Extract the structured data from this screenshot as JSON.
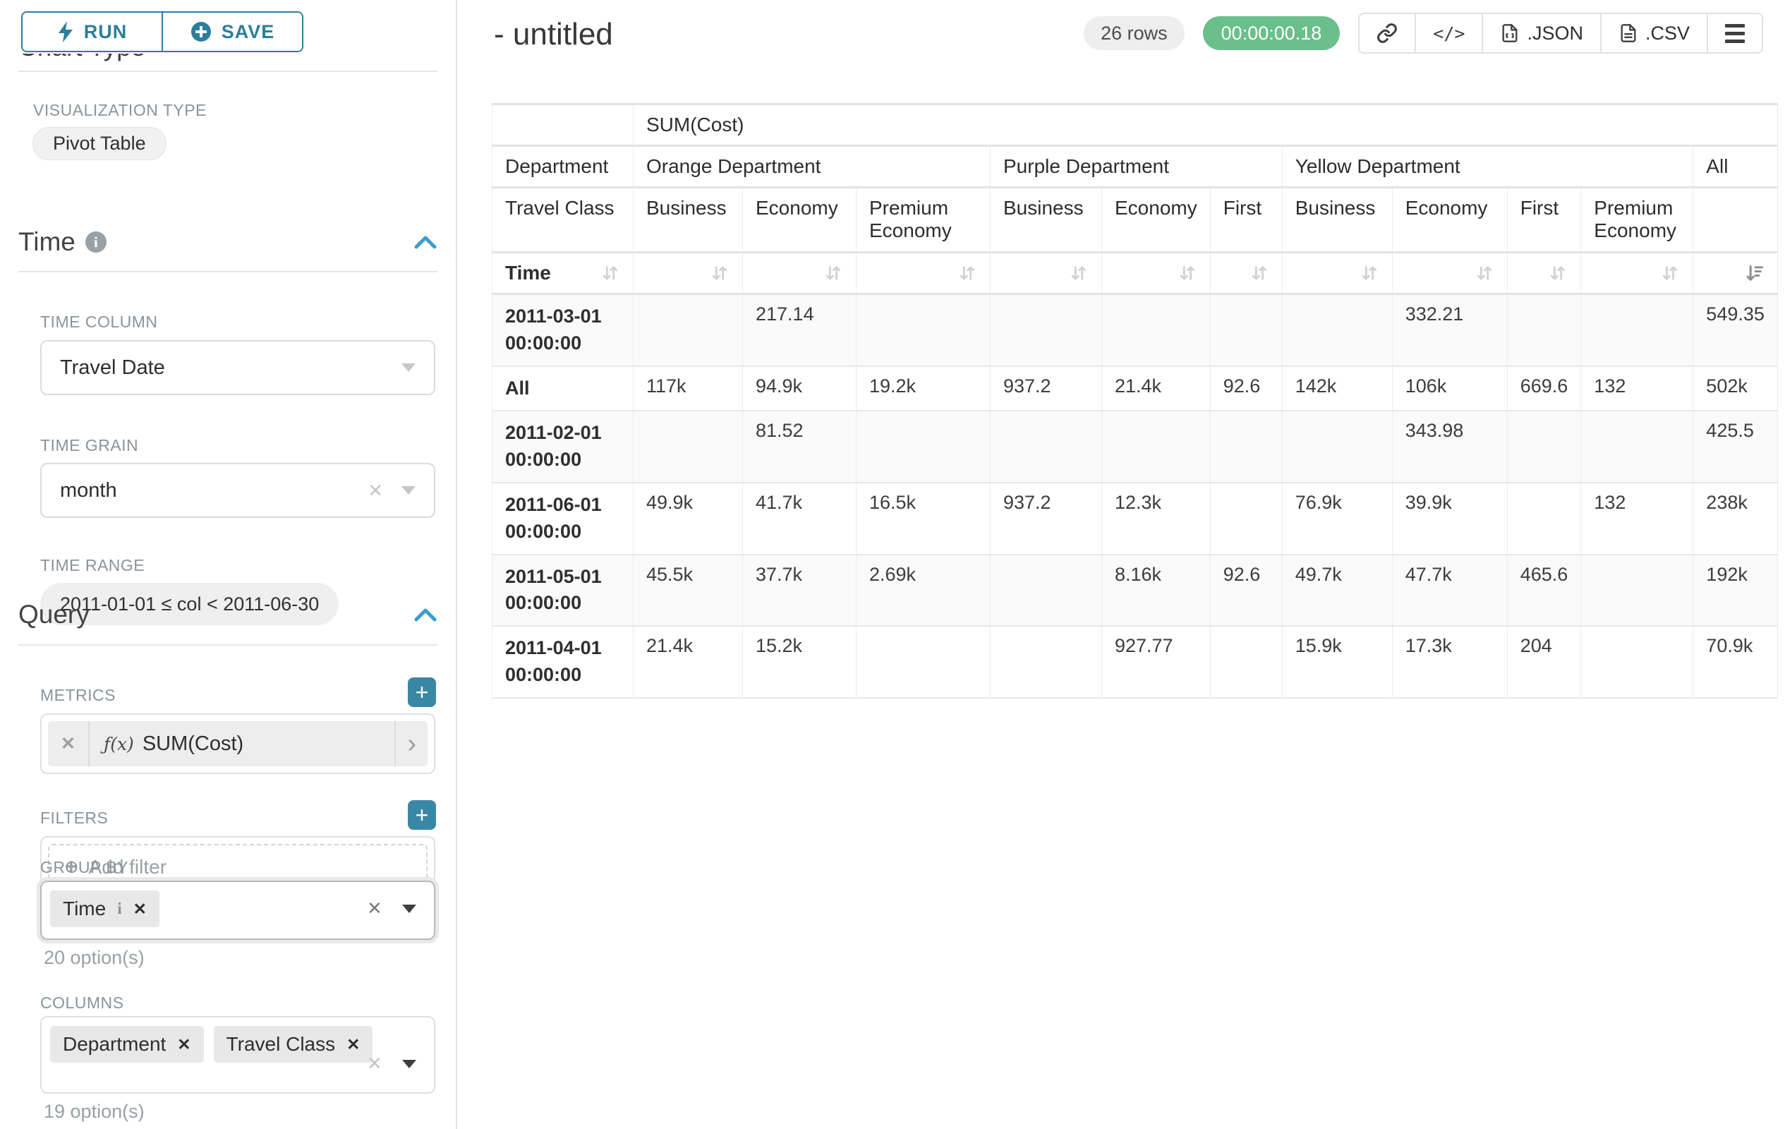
{
  "colors": {
    "accent_teal": "#2b7e9c",
    "chevron_blue": "#3a9ec7",
    "plus_button_teal": "#3a87a5",
    "timer_green": "#6abf8b"
  },
  "toolbar": {
    "run_label": "RUN",
    "save_label": "SAVE"
  },
  "left_panel": {
    "chart_type_section_title": "Chart Type",
    "viz_type_label": "VISUALIZATION TYPE",
    "viz_type_value": "Pivot Table",
    "time_section": {
      "title": "Time",
      "time_column_label": "TIME COLUMN",
      "time_column_value": "Travel Date",
      "time_grain_label": "TIME GRAIN",
      "time_grain_value": "month",
      "time_range_label": "TIME RANGE",
      "time_range_value": "2011-01-01 ≤ col < 2011-06-30"
    },
    "query_section": {
      "title": "Query",
      "metrics_label": "METRICS",
      "metric_fx": "ƒ(x)",
      "metric_value": "SUM(Cost)",
      "filters_label": "FILTERS",
      "add_filter_label": "Add filter",
      "group_by_label": "GROUP BY",
      "group_by_chips": [
        {
          "label": "Time"
        }
      ],
      "group_by_options_note": "20 option(s)",
      "columns_label": "COLUMNS",
      "columns_chips": [
        {
          "label": "Department"
        },
        {
          "label": "Travel Class"
        }
      ],
      "columns_options_note": "19 option(s)"
    }
  },
  "header": {
    "title": "- untitled",
    "row_count": "26 rows",
    "elapsed_time": "00:00:00.18",
    "json_label": ".JSON",
    "csv_label": ".CSV"
  },
  "table": {
    "metric_header": "SUM(Cost)",
    "row_dim_label": "Department",
    "col_dim_label": "Travel Class",
    "time_label": "Time",
    "groups": [
      {
        "label": "Orange Department",
        "span": 3
      },
      {
        "label": "Purple Department",
        "span": 3
      },
      {
        "label": "Yellow Department",
        "span": 4
      },
      {
        "label": "All",
        "span": 1
      }
    ],
    "classes": [
      "Business",
      "Economy",
      "Premium Economy",
      "Business",
      "Economy",
      "First",
      "Business",
      "Economy",
      "First",
      "Premium Economy",
      ""
    ],
    "rows": [
      {
        "label": "2011-03-01 00:00:00",
        "cells": [
          "",
          "217.14",
          "",
          "",
          "",
          "",
          "",
          "332.21",
          "",
          "",
          "549.35"
        ]
      },
      {
        "label": "All",
        "cells": [
          "117k",
          "94.9k",
          "19.2k",
          "937.2",
          "21.4k",
          "92.6",
          "142k",
          "106k",
          "669.6",
          "132",
          "502k"
        ]
      },
      {
        "label": "2011-02-01 00:00:00",
        "cells": [
          "",
          "81.52",
          "",
          "",
          "",
          "",
          "",
          "343.98",
          "",
          "",
          "425.5"
        ]
      },
      {
        "label": "2011-06-01 00:00:00",
        "cells": [
          "49.9k",
          "41.7k",
          "16.5k",
          "937.2",
          "12.3k",
          "",
          "76.9k",
          "39.9k",
          "",
          "132",
          "238k"
        ]
      },
      {
        "label": "2011-05-01 00:00:00",
        "cells": [
          "45.5k",
          "37.7k",
          "2.69k",
          "",
          "8.16k",
          "92.6",
          "49.7k",
          "47.7k",
          "465.6",
          "",
          "192k"
        ]
      },
      {
        "label": "2011-04-01 00:00:00",
        "cells": [
          "21.4k",
          "15.2k",
          "",
          "",
          "927.77",
          "",
          "15.9k",
          "17.3k",
          "204",
          "",
          "70.9k"
        ]
      }
    ]
  }
}
